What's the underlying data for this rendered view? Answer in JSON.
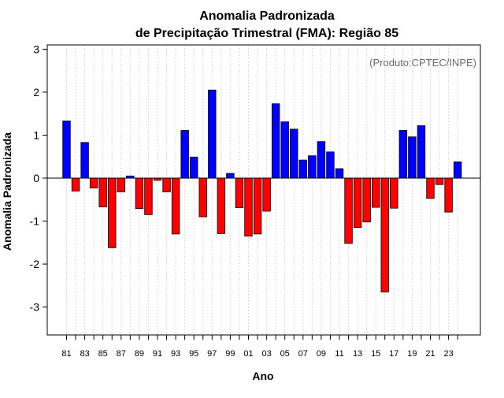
{
  "chart_data": {
    "type": "bar",
    "title": "Anomalia Padronizada",
    "subtitle": "de Precipitação Trimestral (FMA): Região 85",
    "xlabel": "Ano",
    "ylabel": "Anomalia Padronizada",
    "credit": "(Produto:CPTEC/INPE)",
    "ylim": [
      -3.65,
      3.1
    ],
    "yticks": [
      -3,
      -2,
      -1,
      0,
      1,
      2,
      3
    ],
    "ytick_labels": [
      "-3",
      "-2",
      "-1",
      "0",
      "1",
      "2",
      "3"
    ],
    "xtick_labels": [
      "81",
      "83",
      "85",
      "87",
      "89",
      "91",
      "93",
      "95",
      "97",
      "99",
      "01",
      "03",
      "05",
      "07",
      "09",
      "11",
      "13",
      "15",
      "17",
      "19",
      "21",
      "23"
    ],
    "categories": [
      "1981",
      "1982",
      "1983",
      "1984",
      "1985",
      "1986",
      "1987",
      "1988",
      "1989",
      "1990",
      "1991",
      "1992",
      "1993",
      "1994",
      "1995",
      "1996",
      "1997",
      "1998",
      "1999",
      "2000",
      "2001",
      "2002",
      "2003",
      "2004",
      "2005",
      "2006",
      "2007",
      "2008",
      "2009",
      "2010",
      "2011",
      "2012",
      "2013",
      "2014",
      "2015",
      "2016",
      "2017",
      "2018",
      "2019",
      "2020",
      "2021",
      "2022",
      "2023",
      "2024"
    ],
    "values": [
      1.33,
      -0.3,
      0.83,
      -0.23,
      -0.67,
      -1.62,
      -0.32,
      0.05,
      -0.71,
      -0.85,
      -0.05,
      -0.32,
      -1.3,
      1.11,
      0.49,
      -0.9,
      2.05,
      -1.29,
      0.11,
      -0.69,
      -1.35,
      -1.3,
      -0.77,
      1.73,
      1.31,
      1.14,
      0.42,
      0.52,
      0.85,
      0.61,
      0.22,
      -1.52,
      -1.15,
      -1.02,
      -0.68,
      -2.65,
      -0.7,
      1.11,
      0.96,
      1.22,
      -0.47,
      -0.15,
      -0.79,
      0.38
    ],
    "colors": {
      "positive": "#0000ff",
      "negative": "#ff0000",
      "grid": "#d8d8d8",
      "axis": "#000000"
    },
    "grid": true
  }
}
